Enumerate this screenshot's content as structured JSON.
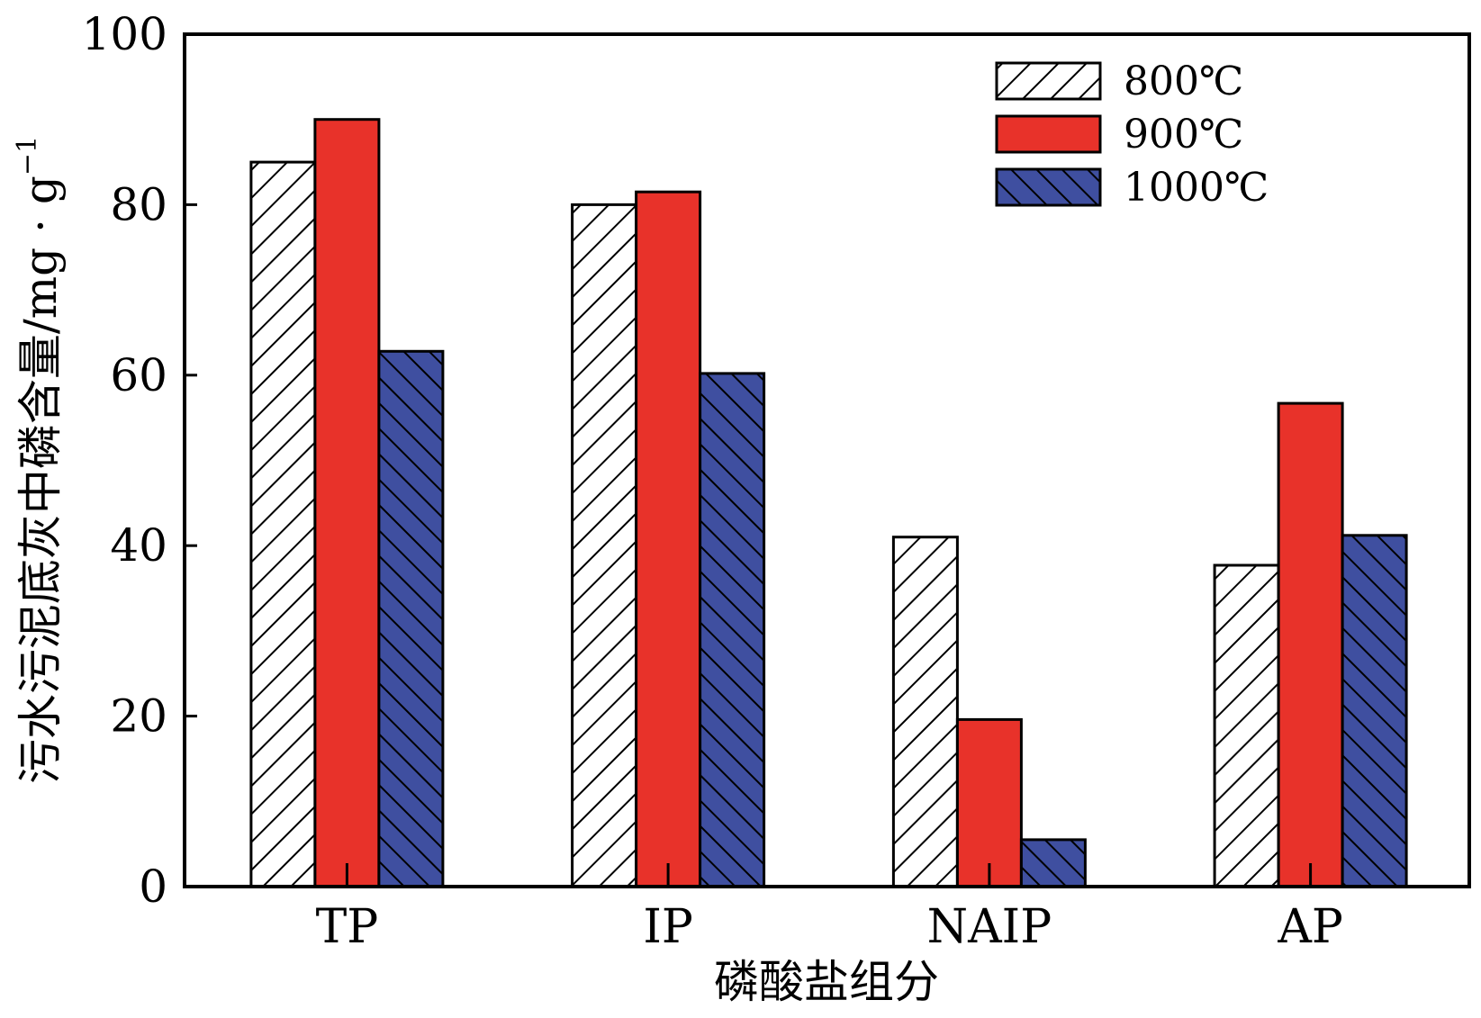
{
  "chart_data": {
    "type": "bar",
    "title": "",
    "xlabel": "磷酸盐组分",
    "ylabel_main": "污水污泥底灰中磷含量/mg · g",
    "ylabel_sup": "−1",
    "categories": [
      "TP",
      "IP",
      "NAIP",
      "AP"
    ],
    "ylim": [
      0,
      100
    ],
    "yticks": [
      0,
      20,
      40,
      60,
      80,
      100
    ],
    "yticks_text": [
      "0",
      "20",
      "40",
      "60",
      "80",
      "100"
    ],
    "legend_position": "top-right",
    "grid": false,
    "series": [
      {
        "name": "800℃",
        "values": [
          85.0,
          80.0,
          41.0,
          37.7
        ],
        "color": "#ffffff",
        "pattern": "hatch-forward"
      },
      {
        "name": "900℃",
        "values": [
          90.0,
          81.5,
          19.6,
          56.7
        ],
        "color": "#e8322a",
        "pattern": "solid"
      },
      {
        "name": "1000℃",
        "values": [
          62.8,
          60.2,
          5.5,
          41.2
        ],
        "color": "#3f4fa0",
        "pattern": "hatch-back"
      }
    ]
  }
}
